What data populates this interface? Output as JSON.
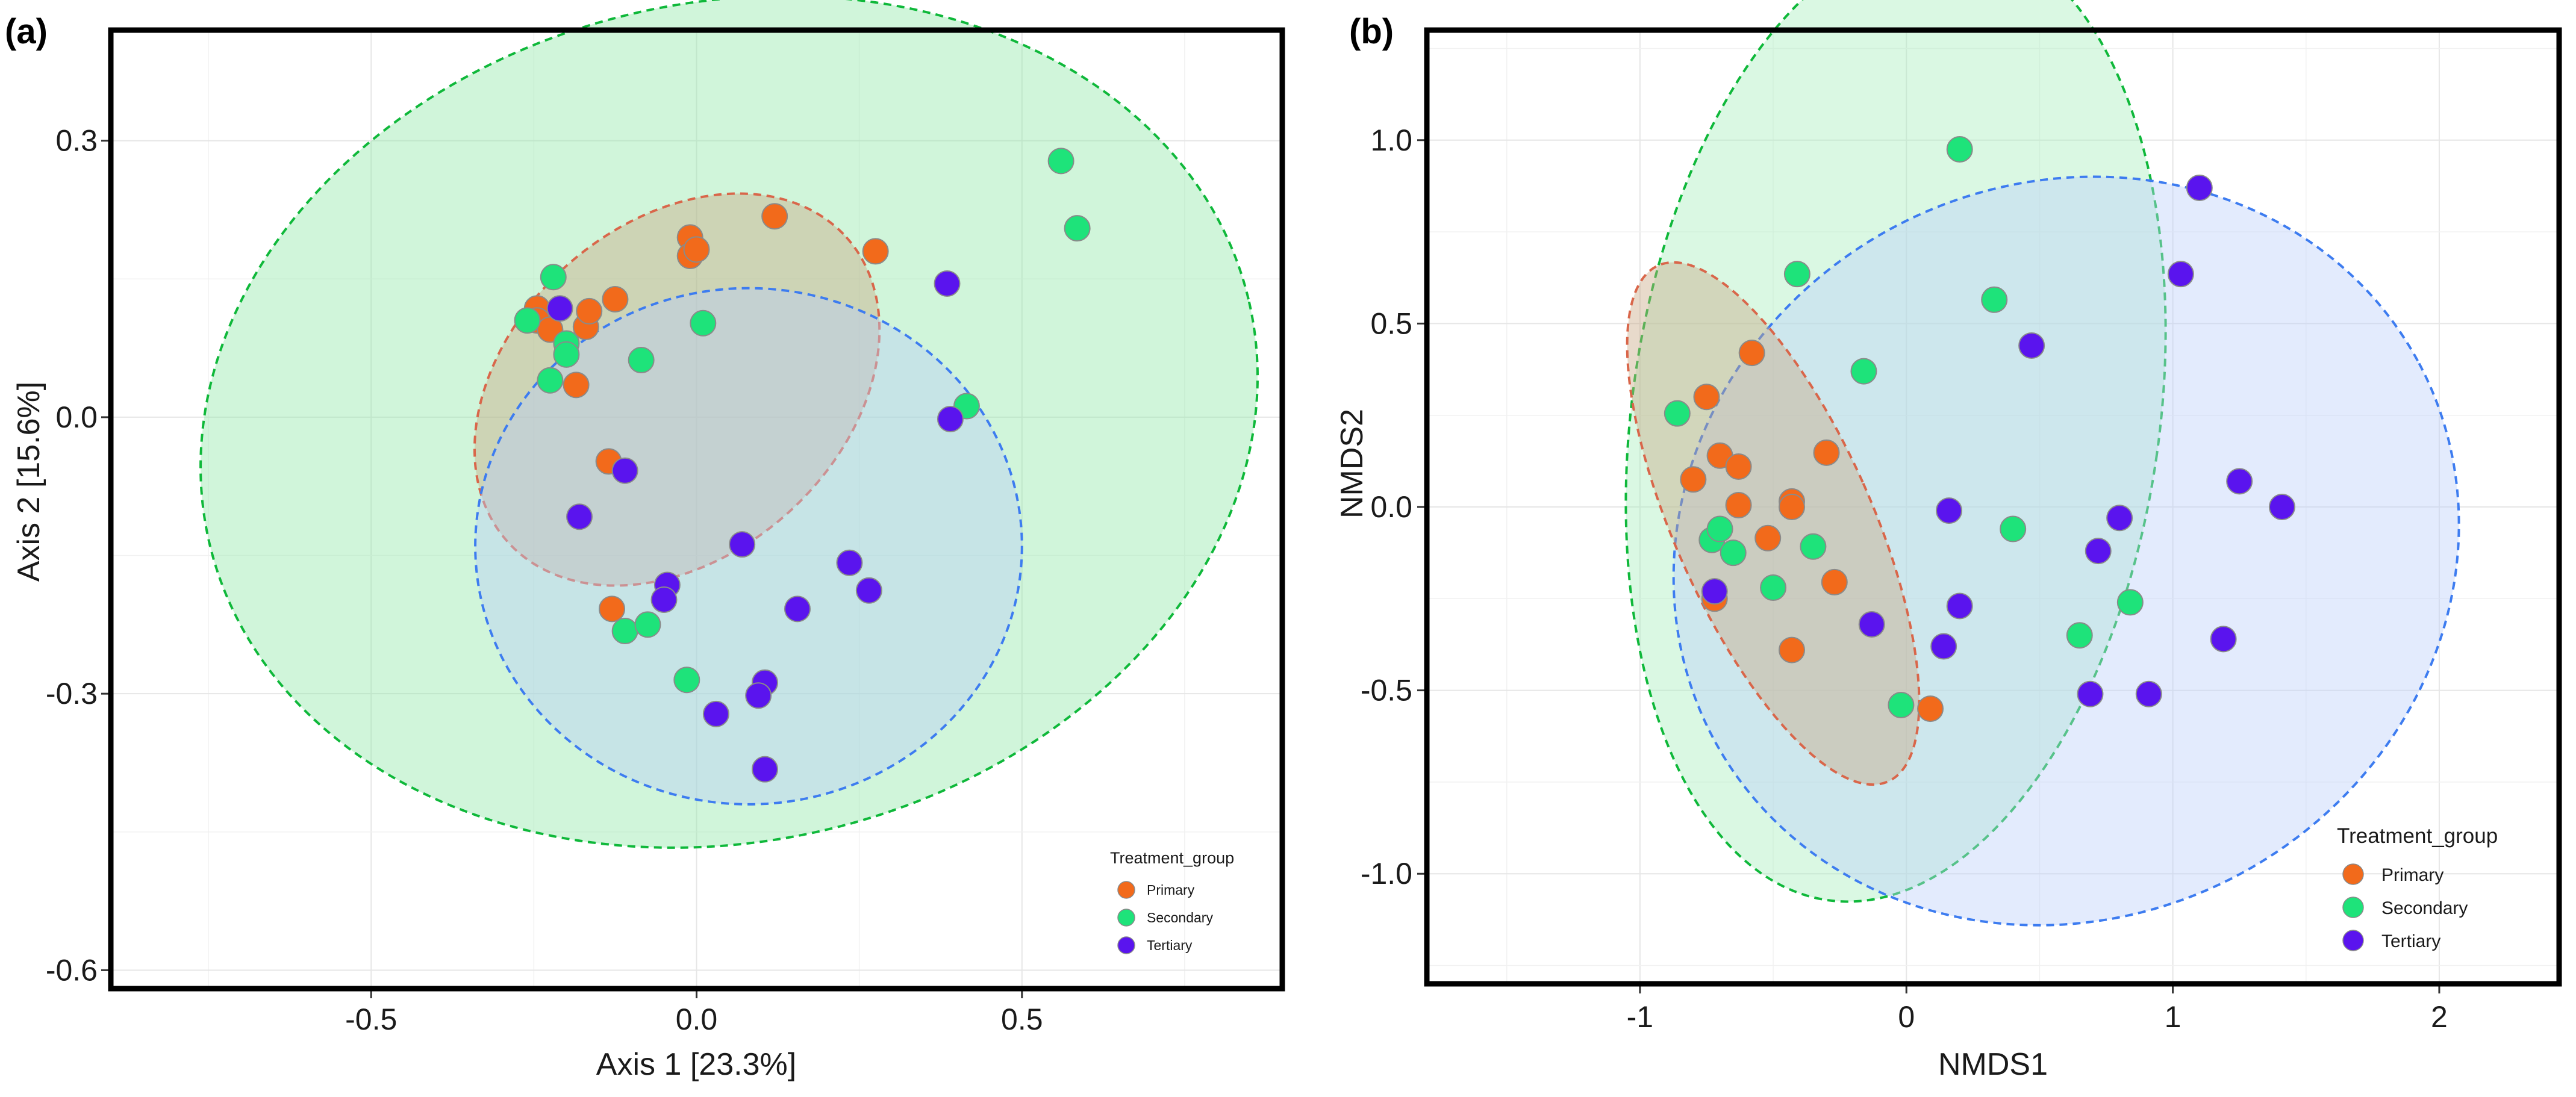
{
  "chart_data": [
    {
      "panel": "(a)",
      "type": "scatter",
      "xlabel": "Axis 1 [23.3%]",
      "ylabel": "Axis 2 [15.6%]",
      "xlim": [
        -0.9,
        0.9
      ],
      "ylim": [
        -0.62,
        0.42
      ],
      "xticks": [
        -0.5,
        0.0,
        0.5
      ],
      "xtick_labels": [
        "-0.5",
        "0.0",
        "0.5"
      ],
      "yticks": [
        -0.6,
        -0.3,
        0.0,
        0.3
      ],
      "ytick_labels": [
        "-0.6",
        "-0.3",
        "0.0",
        "0.3"
      ],
      "grid": true,
      "legend": {
        "title": "Treatment_group",
        "placement": "bottom-right",
        "entries": [
          "Primary",
          "Secondary",
          "Tertiary"
        ]
      },
      "series": [
        {
          "name": "Primary",
          "color": "#f26a1b",
          "points": [
            [
              -0.245,
              0.118
            ],
            [
              -0.245,
              0.105
            ],
            [
              -0.225,
              0.095
            ],
            [
              -0.17,
              0.098
            ],
            [
              -0.165,
              0.115
            ],
            [
              -0.125,
              0.128
            ],
            [
              -0.185,
              0.035
            ],
            [
              -0.135,
              -0.048
            ],
            [
              -0.13,
              -0.208
            ],
            [
              -0.01,
              0.195
            ],
            [
              -0.01,
              0.175
            ],
            [
              0.0,
              0.182
            ],
            [
              0.12,
              0.218
            ],
            [
              0.275,
              0.18
            ]
          ]
        },
        {
          "name": "Secondary",
          "color": "#1ee37a",
          "points": [
            [
              -0.26,
              0.105
            ],
            [
              -0.22,
              0.152
            ],
            [
              -0.2,
              0.08
            ],
            [
              -0.2,
              0.068
            ],
            [
              -0.225,
              0.04
            ],
            [
              -0.085,
              0.062
            ],
            [
              0.01,
              0.102
            ],
            [
              -0.11,
              -0.232
            ],
            [
              -0.075,
              -0.225
            ],
            [
              -0.015,
              -0.285
            ],
            [
              0.415,
              0.012
            ],
            [
              0.56,
              0.278
            ],
            [
              0.585,
              0.205
            ]
          ]
        },
        {
          "name": "Tertiary",
          "color": "#5a14ee",
          "points": [
            [
              -0.21,
              0.118
            ],
            [
              -0.18,
              -0.108
            ],
            [
              -0.11,
              -0.058
            ],
            [
              -0.045,
              -0.182
            ],
            [
              -0.05,
              -0.198
            ],
            [
              0.07,
              -0.138
            ],
            [
              0.155,
              -0.208
            ],
            [
              0.235,
              -0.158
            ],
            [
              0.265,
              -0.188
            ],
            [
              0.105,
              -0.288
            ],
            [
              0.095,
              -0.302
            ],
            [
              0.03,
              -0.322
            ],
            [
              0.105,
              -0.382
            ],
            [
              0.385,
              0.145
            ],
            [
              0.39,
              -0.002
            ]
          ]
        }
      ],
      "ellipses": [
        {
          "group": "Secondary",
          "center": [
            0.05,
            -0.005
          ],
          "radii": [
            0.82,
            0.455
          ],
          "angle_deg": 13,
          "fill": "#8fe8a8",
          "stroke": "#0fb83a"
        },
        {
          "group": "Primary",
          "center": [
            -0.03,
            0.03
          ],
          "radii": [
            0.35,
            0.18
          ],
          "angle_deg": 42,
          "fill": "#c8a882",
          "stroke": "#d9664a"
        },
        {
          "group": "Tertiary",
          "center": [
            0.08,
            -0.14
          ],
          "radii": [
            0.42,
            0.28
          ],
          "angle_deg": 0,
          "fill": "#b8cef8",
          "stroke": "#3d7cf0"
        }
      ]
    },
    {
      "panel": "(b)",
      "type": "scatter",
      "xlabel": "NMDS1",
      "ylabel": "NMDS2",
      "xlim": [
        -1.8,
        2.45
      ],
      "ylim": [
        -1.3,
        1.3
      ],
      "xticks": [
        -1,
        0,
        1,
        2
      ],
      "xtick_labels": [
        "-1",
        "0",
        "1",
        "2"
      ],
      "yticks": [
        -1.0,
        -0.5,
        0.0,
        0.5,
        1.0
      ],
      "ytick_labels": [
        "-1.0",
        "-0.5",
        "0.0",
        "0.5",
        "1.0"
      ],
      "grid": true,
      "legend": {
        "title": "Treatment_group",
        "placement": "bottom-right",
        "entries": [
          "Primary",
          "Secondary",
          "Tertiary"
        ]
      },
      "series": [
        {
          "name": "Primary",
          "color": "#f26a1b",
          "points": [
            [
              -0.75,
              0.3
            ],
            [
              -0.58,
              0.42
            ],
            [
              -0.8,
              0.075
            ],
            [
              -0.7,
              0.14
            ],
            [
              -0.63,
              0.11
            ],
            [
              -0.63,
              0.005
            ],
            [
              -0.52,
              -0.085
            ],
            [
              -0.43,
              0.015
            ],
            [
              -0.43,
              0.0
            ],
            [
              -0.3,
              0.148
            ],
            [
              -0.27,
              -0.205
            ],
            [
              -0.72,
              -0.25
            ],
            [
              -0.43,
              -0.39
            ],
            [
              0.09,
              -0.55
            ]
          ]
        },
        {
          "name": "Secondary",
          "color": "#1ee37a",
          "points": [
            [
              -0.86,
              0.255
            ],
            [
              -0.41,
              0.635
            ],
            [
              -0.16,
              0.37
            ],
            [
              0.2,
              0.975
            ],
            [
              0.33,
              0.565
            ],
            [
              -0.73,
              -0.09
            ],
            [
              -0.7,
              -0.06
            ],
            [
              -0.65,
              -0.125
            ],
            [
              -0.5,
              -0.22
            ],
            [
              -0.35,
              -0.108
            ],
            [
              0.4,
              -0.06
            ],
            [
              0.84,
              -0.26
            ],
            [
              0.65,
              -0.35
            ],
            [
              -0.02,
              -0.54
            ]
          ]
        },
        {
          "name": "Tertiary",
          "color": "#5a14ee",
          "points": [
            [
              1.03,
              0.635
            ],
            [
              1.1,
              0.87
            ],
            [
              0.47,
              0.44
            ],
            [
              0.16,
              -0.01
            ],
            [
              0.8,
              -0.03
            ],
            [
              0.72,
              -0.12
            ],
            [
              1.25,
              0.07
            ],
            [
              1.41,
              0.0
            ],
            [
              1.19,
              -0.36
            ],
            [
              0.2,
              -0.27
            ],
            [
              0.14,
              -0.38
            ],
            [
              -0.13,
              -0.32
            ],
            [
              -0.72,
              -0.23
            ],
            [
              0.69,
              -0.51
            ],
            [
              0.91,
              -0.51
            ]
          ]
        }
      ],
      "ellipses": [
        {
          "group": "Secondary",
          "center": [
            -0.04,
            0.245
          ],
          "radii": [
            0.99,
            1.33
          ],
          "angle_deg": -8,
          "fill": "#a7eebc",
          "stroke": "#0fb83a"
        },
        {
          "group": "Tertiary",
          "center": [
            0.6,
            -0.12
          ],
          "radii": [
            1.5,
            1.0
          ],
          "angle_deg": 28,
          "fill": "#bcd0fa",
          "stroke": "#3d7cf0"
        },
        {
          "group": "Primary",
          "center": [
            -0.5,
            -0.045
          ],
          "radii": [
            0.37,
            0.77
          ],
          "angle_deg": 24,
          "fill": "#c8a882",
          "stroke": "#d9664a"
        }
      ]
    }
  ]
}
